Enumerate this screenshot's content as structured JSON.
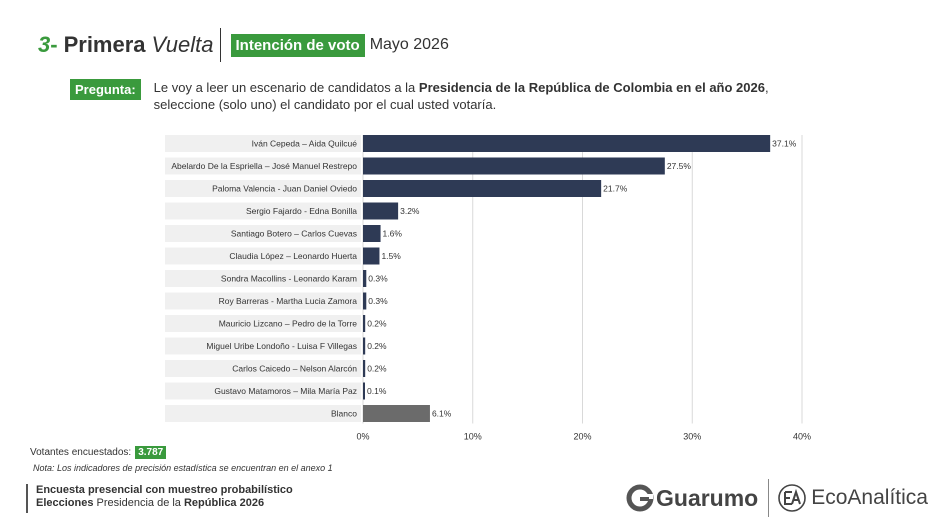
{
  "header": {
    "number": "3",
    "separator": "-",
    "title_part1": "Primera",
    "title_part2": "Vuelta",
    "badge": "Intención de voto",
    "date": "Mayo 2026"
  },
  "question": {
    "label": "Pregunta:",
    "text_before": "Le voy a leer un escenario de candidatos a la ",
    "text_bold": "Presidencia de la República de Colombia en el año 2026",
    "text_after": ", seleccione (solo uno) el candidato por el cual usted votaría."
  },
  "colors": {
    "accent_green": "#3a9a3d",
    "bar_candidate": "#2e3a55",
    "bar_blank": "#6b6b6b",
    "label_background": "#f0f0f0"
  },
  "chart_data": {
    "type": "bar",
    "orientation": "horizontal",
    "categories": [
      "Iván Cepeda – Aida Quilcué",
      "Abelardo De la Espriella – José Manuel Restrepo",
      "Paloma Valencia - Juan Daniel Oviedo",
      "Sergio Fajardo - Edna Bonilla",
      "Santiago Botero – Carlos Cuevas",
      "Claudia López – Leonardo Huerta",
      "Sondra Macollins - Leonardo Karam",
      "Roy Barreras - Martha Lucia Zamora",
      "Mauricio Lizcano – Pedro de la Torre",
      "Miguel Uribe Londoño - Luisa F Villegas",
      "Carlos Caicedo – Nelson Alarcón",
      "Gustavo Matamoros – Mila María Paz",
      "Blanco"
    ],
    "values": [
      37.1,
      27.5,
      21.7,
      3.2,
      1.6,
      1.5,
      0.3,
      0.3,
      0.2,
      0.2,
      0.2,
      0.1,
      6.1
    ],
    "value_labels": [
      "37.1%",
      "27.5%",
      "21.7%",
      "3.2%",
      "1.6%",
      "1.5%",
      "0.3%",
      "0.3%",
      "0.2%",
      "0.2%",
      "0.2%",
      "0.1%",
      "6.1%"
    ],
    "xlim": [
      0,
      40
    ],
    "xticks": [
      0,
      10,
      20,
      30,
      40
    ],
    "xtick_labels": [
      "0%",
      "10%",
      "20%",
      "30%",
      "40%"
    ],
    "grid": true,
    "highlight_category": "Blanco"
  },
  "sample": {
    "label": "Votantes encuestados:",
    "value": "3.787"
  },
  "note": "Nota: Los indicadores de precisión estadística se encuentran en el anexo 1",
  "footer": {
    "line1": "Encuesta presencial con muestreo probabilístico",
    "line2_bold_a": "Elecciones",
    "line2_plain": " Presidencia de la ",
    "line2_bold_b": "República 2026"
  },
  "logos": {
    "guarumo": "Guarumo",
    "ecoanalitica": "EcoAnalítica",
    "guarumo_icon": "g-swirl-icon",
    "ecoanalitica_icon": "ea-monogram-icon"
  }
}
